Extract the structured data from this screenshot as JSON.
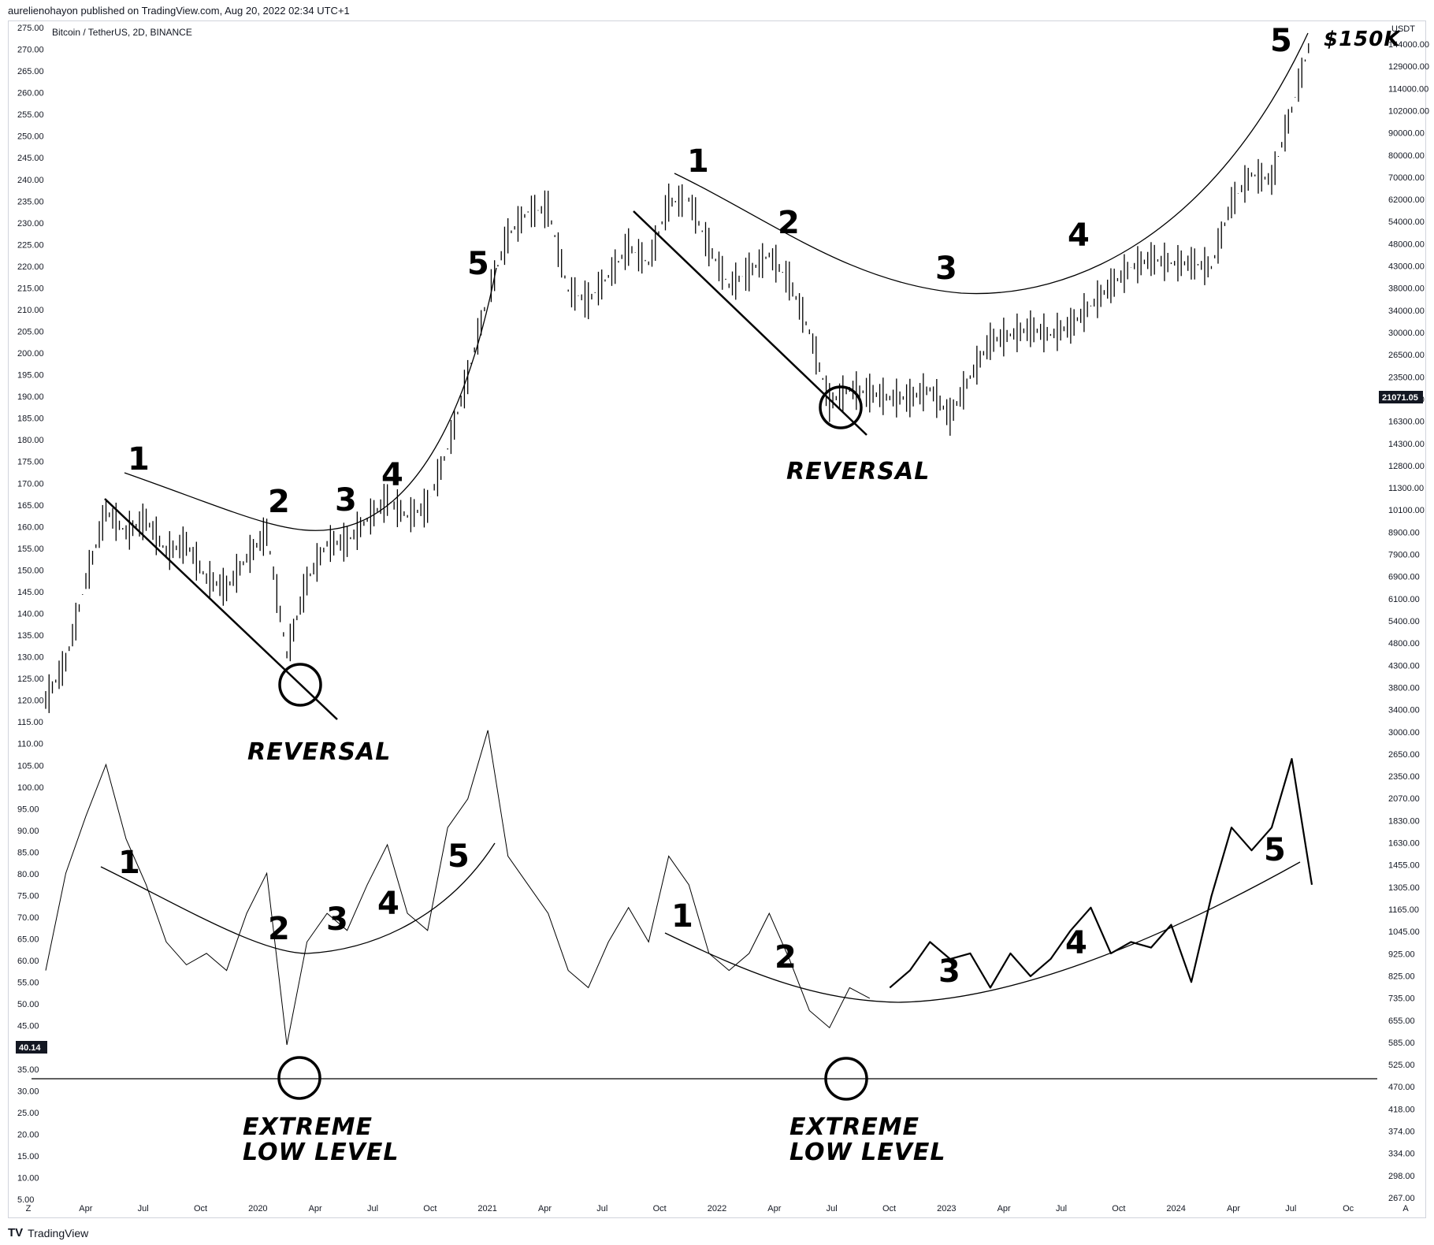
{
  "header": {
    "published": "aurelienohayon published on TradingView.com, Aug 20, 2022 02:34 UTC+1"
  },
  "pair_label": "Bitcoin / TetherUS, 2D, BINANCE",
  "footer": {
    "logo": "TV",
    "brand": "TradingView"
  },
  "chart_data": {
    "type": "line",
    "title": "",
    "left_axis": {
      "ticks": [
        "275.00",
        "270.00",
        "265.00",
        "260.00",
        "255.00",
        "250.00",
        "245.00",
        "240.00",
        "235.00",
        "230.00",
        "225.00",
        "220.00",
        "215.00",
        "210.00",
        "205.00",
        "200.00",
        "195.00",
        "190.00",
        "185.00",
        "180.00",
        "175.00",
        "170.00",
        "165.00",
        "160.00",
        "155.00",
        "150.00",
        "145.00",
        "140.00",
        "135.00",
        "130.00",
        "125.00",
        "120.00",
        "115.00",
        "110.00",
        "105.00",
        "100.00",
        "95.00",
        "90.00",
        "85.00",
        "80.00",
        "75.00",
        "70.00",
        "65.00",
        "60.00",
        "55.00",
        "50.00",
        "45.00",
        "40.00",
        "35.00",
        "30.00",
        "25.00",
        "20.00",
        "15.00",
        "10.00",
        "5.00"
      ],
      "range": [
        5,
        275
      ]
    },
    "right_axis": {
      "unit": "USDT",
      "ticks": [
        "144000.00",
        "129000.00",
        "114000.00",
        "102000.00",
        "90000.00",
        "80000.00",
        "70000.00",
        "62000.00",
        "54000.00",
        "48000.00",
        "43000.00",
        "38000.00",
        "34000.00",
        "30000.00",
        "26500.00",
        "23500.00",
        "18300.00",
        "16300.00",
        "14300.00",
        "12800.00",
        "11300.00",
        "10100.00",
        "8900.00",
        "7900.00",
        "6900.00",
        "6100.00",
        "5400.00",
        "4800.00",
        "4300.00",
        "3800.00",
        "3400.00",
        "3000.00",
        "2650.00",
        "2350.00",
        "2070.00",
        "1830.00",
        "1630.00",
        "1455.00",
        "1305.00",
        "1165.00",
        "1045.00",
        "925.00",
        "825.00",
        "735.00",
        "655.00",
        "585.00",
        "525.00",
        "470.00",
        "418.00",
        "374.00",
        "334.00",
        "298.00",
        "267.00"
      ],
      "scale": "log"
    },
    "x_axis": {
      "ticks": [
        "Z",
        "Apr",
        "Jul",
        "Oct",
        "2020",
        "Apr",
        "Jul",
        "Oct",
        "2021",
        "Apr",
        "Jul",
        "Oct",
        "2022",
        "Apr",
        "Jul",
        "Oct",
        "2023",
        "Apr",
        "Jul",
        "Oct",
        "2024",
        "Apr",
        "Jul",
        "Oc",
        "A"
      ]
    },
    "price_badge": "21071.05",
    "indicator_badge": "40.14",
    "price_series": {
      "name": "",
      "x": [
        "2019-03",
        "2019-04",
        "2019-05",
        "2019-06",
        "2019-07",
        "2019-08",
        "2019-09",
        "2019-10",
        "2019-11",
        "2019-12",
        "2020-01",
        "2020-02",
        "2020-03",
        "2020-04",
        "2020-05",
        "2020-06",
        "2020-07",
        "2020-08",
        "2020-09",
        "2020-10",
        "2020-11",
        "2020-12",
        "2021-01",
        "2021-02",
        "2021-03",
        "2021-04",
        "2021-05",
        "2021-06",
        "2021-07",
        "2021-08",
        "2021-09",
        "2021-10",
        "2021-11",
        "2021-12",
        "2022-01",
        "2022-02",
        "2022-03",
        "2022-04",
        "2022-05",
        "2022-06",
        "2022-07",
        "2022-08",
        "2022-09",
        "2022-10",
        "2022-11",
        "2022-12",
        "2023-01",
        "2023-02",
        "2023-03",
        "2023-04",
        "2023-05",
        "2023-06",
        "2023-07",
        "2023-08",
        "2023-09",
        "2023-10",
        "2023-11",
        "2023-12",
        "2024-01",
        "2024-02",
        "2024-03",
        "2024-04",
        "2024-05",
        "2024-06"
      ],
      "y": [
        3900,
        4800,
        7500,
        11000,
        9800,
        10500,
        8800,
        9200,
        7600,
        7200,
        8500,
        9800,
        5000,
        7500,
        9200,
        9300,
        10500,
        11700,
        10700,
        11300,
        15500,
        23000,
        36000,
        50000,
        57000,
        58000,
        37000,
        35000,
        40000,
        47000,
        43000,
        60000,
        61000,
        47000,
        38000,
        41000,
        45000,
        39000,
        29500,
        20000,
        21500,
        21071,
        20500,
        20500,
        21500,
        18500,
        23000,
        28000,
        29000,
        30000,
        29000,
        30500,
        34000,
        38000,
        42000,
        44000,
        43000,
        43000,
        42000,
        60000,
        70000,
        68000,
        100000,
        150000
      ]
    },
    "indicator_series": {
      "name": "",
      "x": [
        "2019-03",
        "2019-04",
        "2019-05",
        "2019-06",
        "2019-07",
        "2019-08",
        "2019-09",
        "2019-10",
        "2019-11",
        "2019-12",
        "2020-01",
        "2020-02",
        "2020-03",
        "2020-04",
        "2020-05",
        "2020-06",
        "2020-07",
        "2020-08",
        "2020-09",
        "2020-10",
        "2020-11",
        "2020-12",
        "2021-01",
        "2021-02",
        "2021-03",
        "2021-04",
        "2021-05",
        "2021-06",
        "2021-07",
        "2021-08",
        "2021-09",
        "2021-10",
        "2021-11",
        "2021-12",
        "2022-01",
        "2022-02",
        "2022-03",
        "2022-04",
        "2022-05",
        "2022-06",
        "2022-07",
        "2022-08"
      ],
      "y": [
        45,
        62,
        72,
        81,
        68,
        60,
        50,
        46,
        48,
        45,
        55,
        62,
        32,
        50,
        55,
        52,
        60,
        67,
        55,
        52,
        70,
        75,
        87,
        65,
        60,
        55,
        45,
        42,
        50,
        56,
        50,
        65,
        60,
        48,
        45,
        48,
        55,
        47,
        38,
        35,
        42,
        40.14
      ]
    },
    "projected_indicator": {
      "x": [
        "2022-09",
        "2022-10",
        "2022-11",
        "2022-12",
        "2023-01",
        "2023-02",
        "2023-03",
        "2023-04",
        "2023-05",
        "2023-06",
        "2023-07",
        "2023-08",
        "2023-09",
        "2023-10",
        "2023-11",
        "2023-12",
        "2024-01",
        "2024-02",
        "2024-03",
        "2024-04",
        "2024-05",
        "2024-06"
      ],
      "y": [
        42,
        45,
        50,
        47,
        48,
        42,
        48,
        44,
        47,
        52,
        56,
        48,
        50,
        49,
        53,
        43,
        58,
        70,
        66,
        70,
        82,
        60
      ]
    }
  },
  "annotations": {
    "top": {
      "wave1": [
        "1",
        "2",
        "3",
        "4",
        "5"
      ],
      "wave2": [
        "1",
        "2",
        "3",
        "4",
        "5"
      ],
      "reversal": "REVERSAL",
      "target": "$150K"
    },
    "bottom": {
      "wave1": [
        "1",
        "2",
        "3",
        "4",
        "5"
      ],
      "wave2": [
        "1",
        "2",
        "3",
        "4",
        "5"
      ],
      "extreme_low": [
        "EXTREME",
        "LOW LEVEL"
      ]
    }
  }
}
